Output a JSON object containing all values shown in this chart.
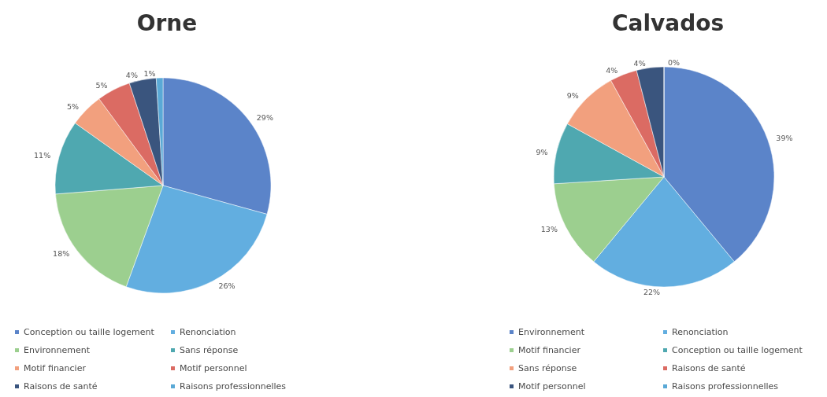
{
  "chart_data": [
    {
      "type": "pie",
      "title": "Orne",
      "categories": [
        "Conception ou taille logement",
        "Renonciation",
        "Environnement",
        "Sans réponse",
        "Motif financier",
        "Motif personnel",
        "Raisons de santé",
        "Raisons professionnelles"
      ],
      "values": [
        29,
        26,
        18,
        11,
        5,
        5,
        4,
        1
      ],
      "value_labels": [
        "29%",
        "26%",
        "18%",
        "11%",
        "5%",
        "5%",
        "4%",
        "1%"
      ],
      "colors": [
        "#5b84c9",
        "#62aee0",
        "#9ccf8f",
        "#4fa8b0",
        "#f2a07e",
        "#db6b63",
        "#3a557e",
        "#5aa9d6"
      ],
      "legend": "bottom"
    },
    {
      "type": "pie",
      "title": "Calvados",
      "categories": [
        "Environnement",
        "Renonciation",
        "Motif financier",
        "Conception ou taille logement",
        "Sans réponse",
        "Raisons de santé",
        "Motif personnel",
        "Raisons professionnelles"
      ],
      "values": [
        39,
        22,
        13,
        9,
        9,
        4,
        4,
        0
      ],
      "value_labels": [
        "39%",
        "22%",
        "13%",
        "9%",
        "9%",
        "4%",
        "4%",
        "0%"
      ],
      "colors": [
        "#5b84c9",
        "#62aee0",
        "#9ccf8f",
        "#4fa8b0",
        "#f2a07e",
        "#db6b63",
        "#3a557e",
        "#5aa9d6"
      ],
      "legend": "bottom"
    }
  ]
}
